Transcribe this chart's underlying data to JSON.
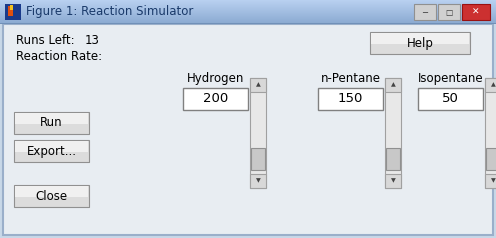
{
  "title": "Figure 1: Reaction Simulator",
  "outer_bg": "#c8d8e8",
  "dialog_bg": "#e8edf2",
  "titlebar_bg": "#a8c0d8",
  "titlebar_gradient_top": "#c0d8f0",
  "titlebar_gradient_bot": "#90b0d0",
  "runs_left_label": "Runs Left:",
  "runs_left_value": "13",
  "reaction_rate_label": "Reaction Rate:",
  "help_button": "Help",
  "buttons": [
    "Run",
    "Export...",
    "Close"
  ],
  "reactants": [
    "Hydrogen",
    "n-Pentane",
    "Isopentane"
  ],
  "values": [
    "200",
    "150",
    "50"
  ],
  "button_face": "#e0e0e0",
  "button_border": "#a0a0a0",
  "input_bg": "#ffffff",
  "input_border": "#808080",
  "text_color": "#000000",
  "title_text_color": "#1a3a6a",
  "scrollbar_track": "#f0f0f0",
  "scrollbar_thumb": "#c8c8c8",
  "scrollbar_arrow_bg": "#e0e0e0",
  "win_ctrl_gray": "#d8d8d8",
  "win_ctrl_red": "#cc3030",
  "matlab_orange": "#e05010"
}
